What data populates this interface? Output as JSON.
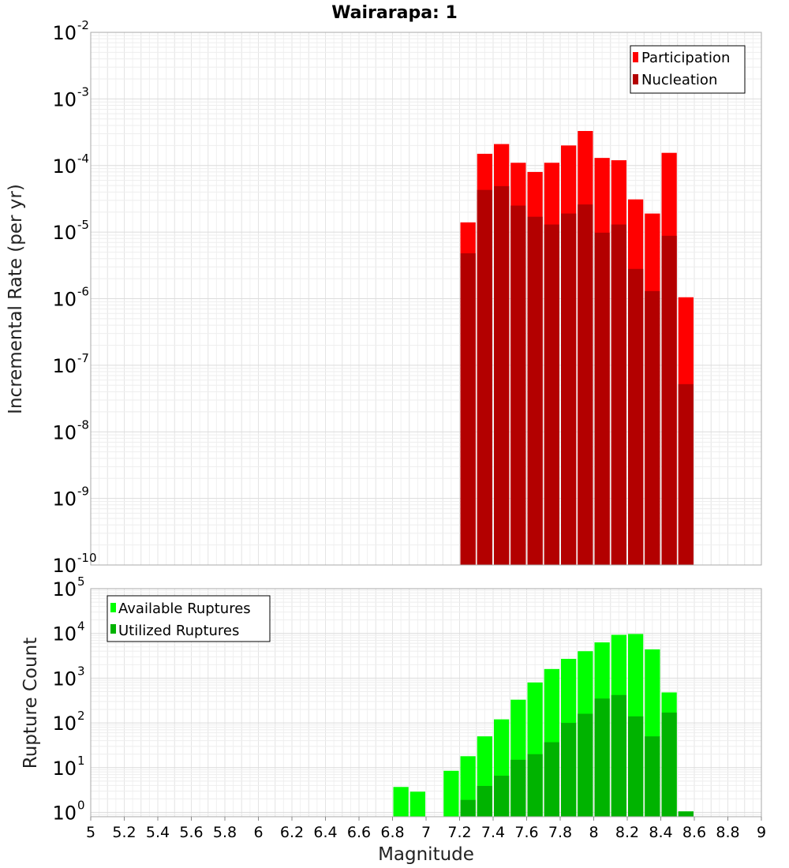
{
  "chart_data": [
    {
      "type": "bar",
      "title": "Wairarapa: 1",
      "xlabel": "",
      "ylabel": "Incremental Rate (per yr)",
      "yscale": "log",
      "ylim": [
        1e-10,
        0.01
      ],
      "xlim": [
        5,
        9
      ],
      "bin_width": 0.1,
      "grid": true,
      "legend_position": "top-right",
      "x": [
        7.25,
        7.35,
        7.45,
        7.55,
        7.65,
        7.75,
        7.85,
        7.95,
        8.05,
        8.15,
        8.25,
        8.35,
        8.45,
        8.55
      ],
      "series": [
        {
          "name": "Participation",
          "color": "#ff0000",
          "values": [
            1.4e-05,
            0.00015,
            0.00021,
            0.00011,
            8e-05,
            0.00011,
            0.0002,
            0.00033,
            0.00013,
            0.00012,
            3.1e-05,
            1.9e-05,
            0.000155,
            1.05e-06
          ]
        },
        {
          "name": "Nucleation",
          "color": "#b30000",
          "values": [
            4.8e-06,
            4.3e-05,
            4.9e-05,
            2.5e-05,
            1.7e-05,
            1.3e-05,
            1.9e-05,
            2.6e-05,
            9.8e-06,
            1.3e-05,
            2.8e-06,
            1.3e-06,
            8.8e-06,
            5.2e-08
          ]
        }
      ],
      "y_ticks": [
        {
          "base": "10",
          "exp": "-10"
        },
        {
          "base": "10",
          "exp": "-9"
        },
        {
          "base": "10",
          "exp": "-8"
        },
        {
          "base": "10",
          "exp": "-7"
        },
        {
          "base": "10",
          "exp": "-6"
        },
        {
          "base": "10",
          "exp": "-5"
        },
        {
          "base": "10",
          "exp": "-4"
        },
        {
          "base": "10",
          "exp": "-3"
        },
        {
          "base": "10",
          "exp": "-2"
        }
      ]
    },
    {
      "type": "bar",
      "title": "",
      "xlabel": "Magnitude",
      "ylabel": "Rupture Count",
      "yscale": "log",
      "ylim": [
        0.8,
        100000
      ],
      "xlim": [
        5,
        9
      ],
      "bin_width": 0.1,
      "grid": true,
      "legend_position": "top-left",
      "x": [
        6.85,
        6.95,
        7.15,
        7.25,
        7.35,
        7.45,
        7.55,
        7.65,
        7.75,
        7.85,
        7.95,
        8.05,
        8.15,
        8.25,
        8.35,
        8.45,
        8.55
      ],
      "series": [
        {
          "name": "Available Ruptures",
          "color": "#00ff00",
          "values": [
            3.7,
            2.9,
            8.5,
            18,
            50,
            120,
            330,
            800,
            1600,
            2700,
            4000,
            6300,
            9300,
            9700,
            4400,
            480,
            1.05
          ]
        },
        {
          "name": "Utilized Ruptures",
          "color": "#00b300",
          "values": [
            0,
            0,
            0,
            1.9,
            3.9,
            6.6,
            15,
            20,
            37,
            100,
            160,
            350,
            420,
            140,
            50,
            170,
            1.05
          ]
        }
      ],
      "y_ticks": [
        {
          "base": "10",
          "exp": "0"
        },
        {
          "base": "10",
          "exp": "1"
        },
        {
          "base": "10",
          "exp": "2"
        },
        {
          "base": "10",
          "exp": "3"
        },
        {
          "base": "10",
          "exp": "4"
        },
        {
          "base": "10",
          "exp": "5"
        }
      ],
      "x_ticks": [
        "5",
        "5.2",
        "5.4",
        "5.6",
        "5.8",
        "6",
        "6.2",
        "6.4",
        "6.6",
        "6.8",
        "7",
        "7.2",
        "7.4",
        "7.6",
        "7.8",
        "8",
        "8.2",
        "8.4",
        "8.6",
        "8.8",
        "9"
      ]
    }
  ]
}
